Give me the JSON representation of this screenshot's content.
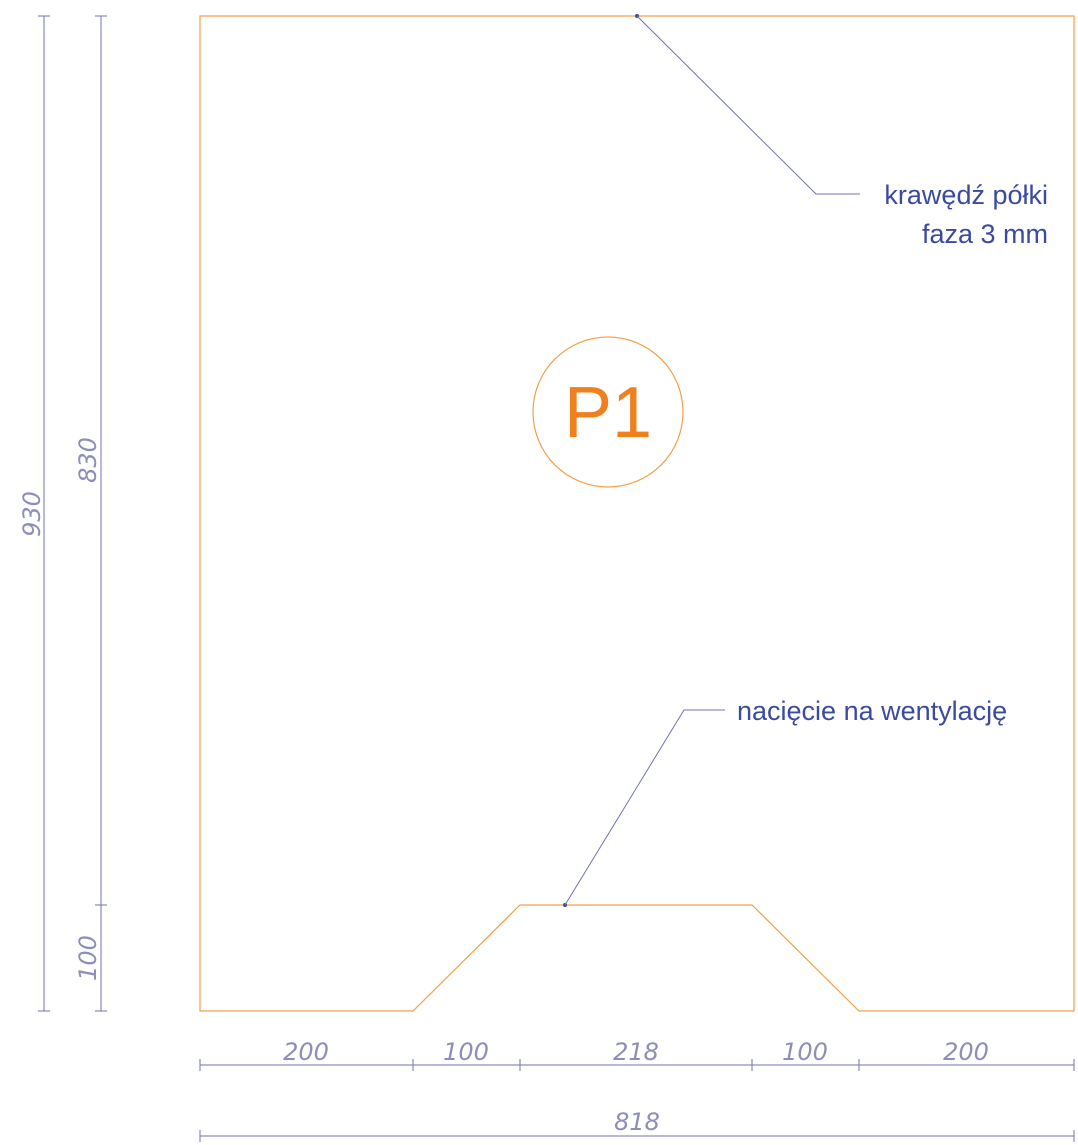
{
  "colors": {
    "outline": "#f5a048",
    "label": "#f07f1e",
    "dimension": "#6f72b4",
    "dimension_text": "#8d8dba",
    "callout": "#3a4aa0"
  },
  "panel": {
    "label": "P1"
  },
  "callouts": {
    "edge_line1": "krawędź półki",
    "edge_line2": "faza 3 mm",
    "notch": "nacięcie na wentylację"
  },
  "dimensions": {
    "total_height": "930",
    "upper_height": "830",
    "notch_height": "100",
    "seg_left": "200",
    "seg_slope_left": "100",
    "seg_middle": "218",
    "seg_slope_right": "100",
    "seg_right": "200",
    "total_width": "818"
  }
}
